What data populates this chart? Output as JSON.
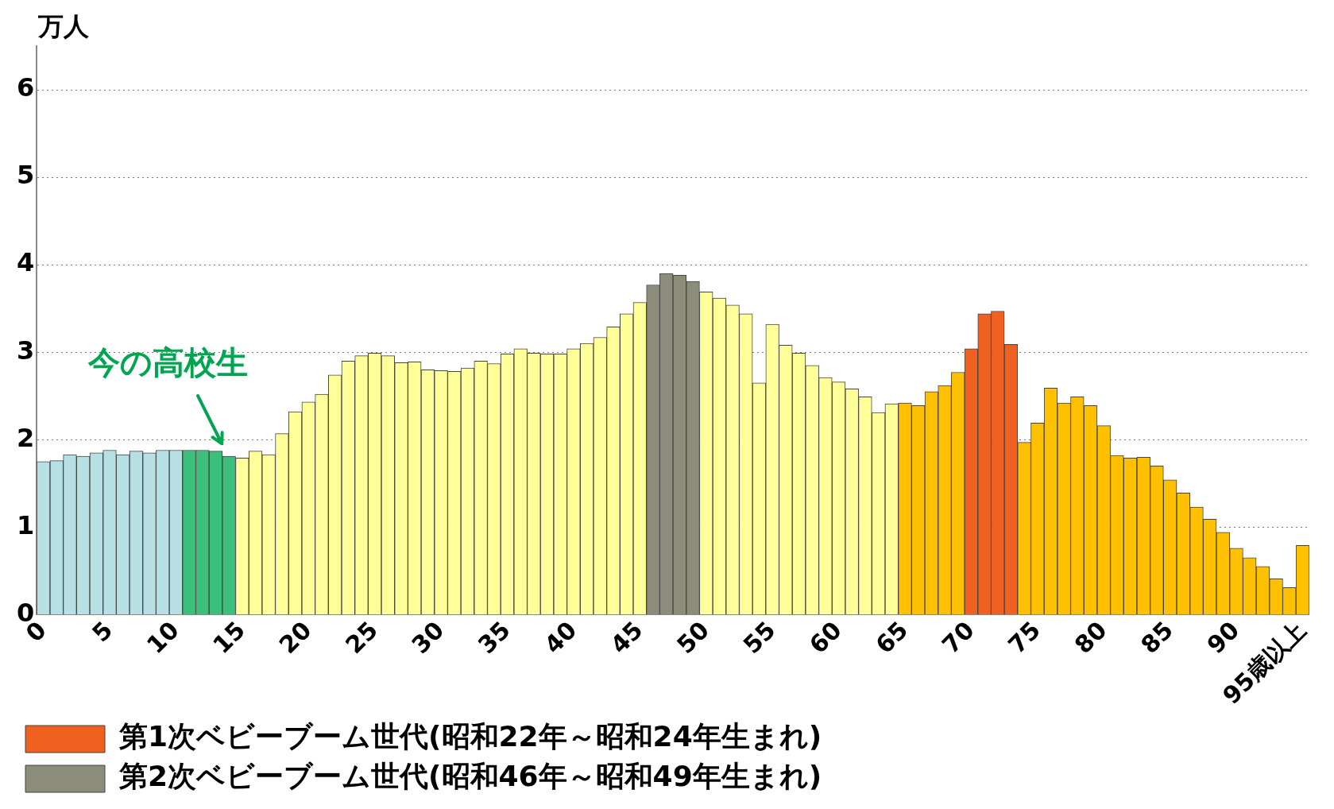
{
  "chart_data": {
    "type": "bar",
    "ylabel": "万人",
    "stacked": true,
    "categories": [
      "0",
      null,
      null,
      null,
      null,
      "5",
      null,
      null,
      null,
      null,
      "10",
      null,
      null,
      null,
      null,
      "15",
      null,
      null,
      null,
      null,
      "20",
      null,
      null,
      null,
      null,
      "25",
      null,
      null,
      null,
      null,
      "30",
      null,
      null,
      null,
      null,
      "35",
      null,
      null,
      null,
      null,
      "40",
      null,
      null,
      null,
      null,
      "45",
      null,
      null,
      null,
      null,
      "50",
      null,
      null,
      null,
      null,
      "55",
      null,
      null,
      null,
      null,
      "60",
      null,
      null,
      null,
      null,
      "65",
      null,
      null,
      null,
      null,
      "70",
      null,
      null,
      null,
      null,
      "75",
      null,
      null,
      null,
      null,
      "80",
      null,
      null,
      null,
      null,
      "85",
      null,
      null,
      null,
      null,
      "90",
      null,
      null,
      null,
      null,
      "95歳以上"
    ],
    "series": [
      {
        "colors": [
          "#b7e0e4",
          "#b7e0e4",
          "#b7e0e4",
          "#b7e0e4",
          "#b7e0e4",
          "#b7e0e4",
          "#b7e0e4",
          "#b7e0e4",
          "#b7e0e4",
          "#b7e0e4",
          "#b7e0e4",
          "#3cbf7a",
          "#3cbf7a",
          "#3cbf7a",
          "#3cbf7a",
          "#ffff99",
          "#ffff99",
          "#ffff99",
          "#ffff99",
          "#ffff99",
          "#ffff99",
          "#ffff99",
          "#ffff99",
          "#ffff99",
          "#ffff99",
          "#ffff99",
          "#ffff99",
          "#ffff99",
          "#ffff99",
          "#ffff99",
          "#ffff99",
          "#ffff99",
          "#ffff99",
          "#ffff99",
          "#ffff99",
          "#ffff99",
          "#ffff99",
          "#ffff99",
          "#ffff99",
          "#ffff99",
          "#ffff99",
          "#ffff99",
          "#ffff99",
          "#ffff99",
          "#ffff99",
          "#ffff99",
          "#ffff99",
          "#ffff99",
          "#ffff99",
          "#ffff99",
          "#ffff99",
          "#ffff99",
          "#ffff99",
          "#ffff99",
          "#ffff99",
          "#ffff99",
          "#ffff99",
          "#ffff99",
          "#ffff99",
          "#ffff99",
          "#ffff99",
          "#ffff99",
          "#ffff99",
          "#ffff99",
          "#ffff99",
          "#ffc000",
          "#ffc000",
          "#ffc000",
          "#ffc000",
          "#ffc000",
          "#ffc000",
          "#ffc000",
          "#ffc000",
          "#ffc000",
          "#ffc000",
          "#ffc000",
          "#ffc000",
          "#ffc000",
          "#ffc000",
          "#ffc000",
          "#ffc000",
          "#ffc000",
          "#ffc000",
          "#ffc000",
          "#ffc000",
          "#ffc000",
          "#ffc000",
          "#ffc000",
          "#ffc000",
          "#ffc000",
          "#ffc000",
          "#ffc000",
          "#ffc000",
          "#ffc000",
          "#ffc000",
          "#ffc000"
        ],
        "values": [
          1.75,
          1.76,
          1.83,
          1.81,
          1.85,
          1.88,
          1.83,
          1.87,
          1.85,
          1.88,
          1.88,
          1.88,
          1.88,
          1.87,
          1.81,
          1.79,
          1.87,
          1.83,
          2.07,
          2.32,
          2.43,
          2.52,
          2.74,
          2.9,
          2.96,
          2.99,
          2.96,
          2.88,
          2.89,
          2.8,
          2.79,
          2.78,
          2.82,
          2.9,
          2.87,
          2.98,
          3.04,
          2.99,
          2.98,
          2.98,
          3.04,
          3.1,
          3.17,
          3.29,
          3.44,
          3.57,
          null,
          null,
          null,
          null,
          3.69,
          3.62,
          3.54,
          3.44,
          2.65,
          3.32,
          3.08,
          2.99,
          2.85,
          2.71,
          2.66,
          2.58,
          2.49,
          2.31,
          2.41,
          2.42,
          2.39,
          2.55,
          2.62,
          2.77,
          null,
          null,
          null,
          null,
          1.97,
          2.19,
          2.59,
          2.42,
          2.49,
          2.39,
          2.16,
          1.82,
          1.79,
          1.8,
          1.7,
          1.54,
          1.39,
          1.23,
          1.09,
          0.94,
          0.76,
          0.65,
          0.55,
          0.41,
          0.31,
          0.79
        ]
      },
      {
        "name": "第1次ベビーブーム世代(昭和22年～昭和24年生まれ)",
        "color": "#f0601e",
        "values": [
          null,
          null,
          null,
          null,
          null,
          null,
          null,
          null,
          null,
          null,
          null,
          null,
          null,
          null,
          null,
          null,
          null,
          null,
          null,
          null,
          null,
          null,
          null,
          null,
          null,
          null,
          null,
          null,
          null,
          null,
          null,
          null,
          null,
          null,
          null,
          null,
          null,
          null,
          null,
          null,
          null,
          null,
          null,
          null,
          null,
          null,
          null,
          null,
          null,
          null,
          null,
          null,
          null,
          null,
          null,
          null,
          null,
          null,
          null,
          null,
          null,
          null,
          null,
          null,
          null,
          null,
          null,
          null,
          null,
          null,
          3.04,
          3.44,
          3.47,
          3.09,
          null,
          null,
          null,
          null,
          null,
          null,
          null,
          null,
          null,
          null,
          null,
          null,
          null,
          null,
          null,
          null,
          null,
          null,
          null,
          null,
          null,
          null
        ]
      },
      {
        "name": "第2次ベビーブーム世代(昭和46年～昭和49年生まれ)",
        "color": "#8c8c7a",
        "values": [
          null,
          null,
          null,
          null,
          null,
          null,
          null,
          null,
          null,
          null,
          null,
          null,
          null,
          null,
          null,
          null,
          null,
          null,
          null,
          null,
          null,
          null,
          null,
          null,
          null,
          null,
          null,
          null,
          null,
          null,
          null,
          null,
          null,
          null,
          null,
          null,
          null,
          null,
          null,
          null,
          null,
          null,
          null,
          null,
          null,
          null,
          3.77,
          3.9,
          3.88,
          3.81,
          null,
          null,
          null,
          null,
          null,
          null,
          null,
          null,
          null,
          null,
          null,
          null,
          null,
          null,
          null,
          null,
          null,
          null,
          null,
          null,
          null,
          null,
          null,
          null,
          null,
          null,
          null,
          null,
          null,
          null,
          null,
          null,
          null,
          null,
          null,
          null,
          null,
          null,
          null,
          null,
          null,
          null,
          null,
          null,
          null,
          null
        ]
      }
    ],
    "ylim": [
      0,
      6.5
    ],
    "yticks": [
      0,
      1,
      2,
      3,
      4,
      5,
      6
    ],
    "grid": "y",
    "legend": "bottom",
    "annotations": [
      "今の高校生"
    ]
  }
}
